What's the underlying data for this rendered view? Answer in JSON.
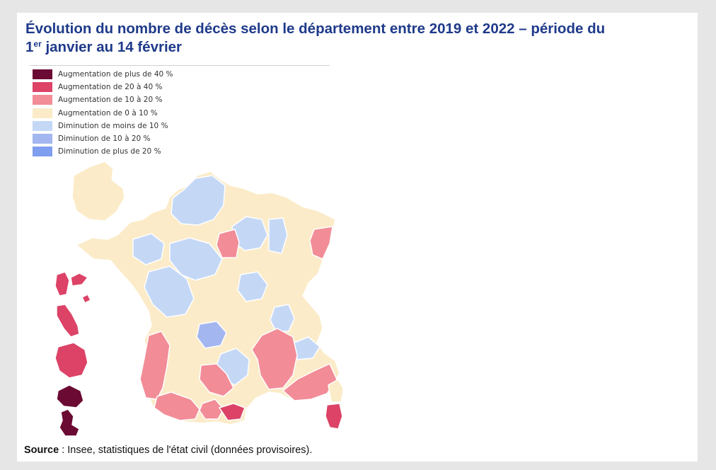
{
  "title_line1": "Évolution du nombre de décès selon le département entre 2019 et 2022 – période du",
  "title_line2_prefix": "1",
  "title_line2_sup": "er",
  "title_line2_rest": " janvier au 14 février",
  "legend": [
    {
      "label": "Augmentation de plus de 40 %",
      "color": "#6b0a32"
    },
    {
      "label": "Augmentation de 20 à 40 %",
      "color": "#dc4367"
    },
    {
      "label": "Augmentation de 10 à 20 %",
      "color": "#f28c97"
    },
    {
      "label": "Augmentation de 0 à 10 %",
      "color": "#fbebc8"
    },
    {
      "label": "Diminution de moins de 10 %",
      "color": "#c4d8f6"
    },
    {
      "label": "Diminution de 10 à 20 %",
      "color": "#a3b6ef"
    },
    {
      "label": "Diminution de plus de 20 %",
      "color": "#7f9ef0"
    }
  ],
  "map": {
    "border_color": "#ffffff",
    "mainland_base": "Augmentation de 0 à 10 %",
    "regions": [
      {
        "area": "Manche",
        "class": "Augmentation de 0 à 10 %"
      },
      {
        "area": "Nord-Picardie",
        "class": "Diminution de moins de 10 %"
      },
      {
        "area": "Champagne",
        "class": "Diminution de moins de 10 %"
      },
      {
        "area": "Meuse",
        "class": "Diminution de moins de 10 %"
      },
      {
        "area": "Seine-et-Marne / Aube",
        "class": "Augmentation de 10 à 20 %"
      },
      {
        "area": "Haut-Rhin",
        "class": "Augmentation de 10 à 20 %"
      },
      {
        "area": "Mayenne / Sarthe",
        "class": "Diminution de moins de 10 %"
      },
      {
        "area": "Centre",
        "class": "Diminution de moins de 10 %"
      },
      {
        "area": "Nièvre",
        "class": "Diminution de moins de 10 %"
      },
      {
        "area": "Vendée / Vienne",
        "class": "Diminution de moins de 10 %"
      },
      {
        "area": "Corrèze / Cantal",
        "class": "Diminution de 10 à 20 %"
      },
      {
        "area": "Aveyron / Lozère",
        "class": "Diminution de moins de 10 %"
      },
      {
        "area": "Ain",
        "class": "Diminution de moins de 10 %"
      },
      {
        "area": "Savoie",
        "class": "Diminution de moins de 10 %"
      },
      {
        "area": "Isère / Drôme",
        "class": "Augmentation de 10 à 20 %"
      },
      {
        "area": "Provence",
        "class": "Augmentation de 10 à 20 %"
      },
      {
        "area": "Aquitaine",
        "class": "Augmentation de 10 à 20 %"
      },
      {
        "area": "Pyrénées",
        "class": "Augmentation de 10 à 20 %"
      },
      {
        "area": "Tarn-et-Garonne / Tarn",
        "class": "Augmentation de 10 à 20 %"
      },
      {
        "area": "Aude",
        "class": "Augmentation de 10 à 20 %"
      },
      {
        "area": "Pyrénées-Orientales",
        "class": "Augmentation de 20 à 40 %"
      },
      {
        "area": "Haute-Corse",
        "class": "Augmentation de 0 à 10 %"
      },
      {
        "area": "Corse-du-Sud",
        "class": "Augmentation de 20 à 40 %"
      },
      {
        "area": "Guadeloupe",
        "class": "Augmentation de 20 à 40 %"
      },
      {
        "area": "Martinique",
        "class": "Augmentation de 20 à 40 %"
      },
      {
        "area": "Guyane",
        "class": "Augmentation de 20 à 40 %"
      },
      {
        "area": "La Réunion",
        "class": "Augmentation de plus de 40 %"
      },
      {
        "area": "Mayotte",
        "class": "Augmentation de plus de 40 %"
      }
    ]
  },
  "source_label": "Source",
  "source_text": " : Insee, statistiques de l'état civil (données provisoires)."
}
